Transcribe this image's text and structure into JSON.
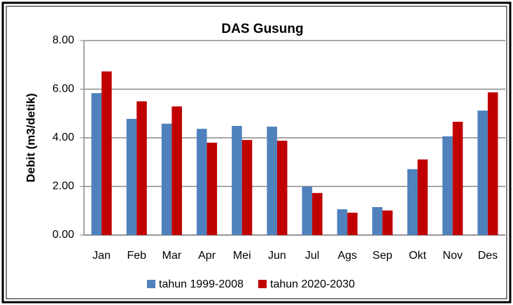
{
  "chart_data": {
    "type": "bar",
    "title": "DAS Gusung",
    "ylabel": "Debit (m3/detik)",
    "categories": [
      "Jan",
      "Feb",
      "Mar",
      "Apr",
      "Mei",
      "Jun",
      "Jul",
      "Ags",
      "Sep",
      "Okt",
      "Nov",
      "Des"
    ],
    "series": [
      {
        "name": "tahun 1999-2008",
        "color": "#4f81bd",
        "values": [
          5.84,
          4.78,
          4.58,
          4.37,
          4.49,
          4.46,
          1.99,
          1.06,
          1.15,
          2.71,
          4.06,
          5.12
        ]
      },
      {
        "name": "tahun 2020-2030",
        "color": "#c00000",
        "values": [
          6.73,
          5.5,
          5.29,
          3.8,
          3.91,
          3.88,
          1.73,
          0.92,
          1.01,
          3.11,
          4.66,
          5.87
        ]
      }
    ],
    "ylim": [
      0,
      8
    ],
    "yticks": [
      {
        "value": 0,
        "label": "0.00"
      },
      {
        "value": 2,
        "label": "2.00"
      },
      {
        "value": 4,
        "label": "4.00"
      },
      {
        "value": 6,
        "label": "6.00"
      },
      {
        "value": 8,
        "label": "8.00"
      }
    ],
    "grid": true,
    "legend": "bottom"
  }
}
